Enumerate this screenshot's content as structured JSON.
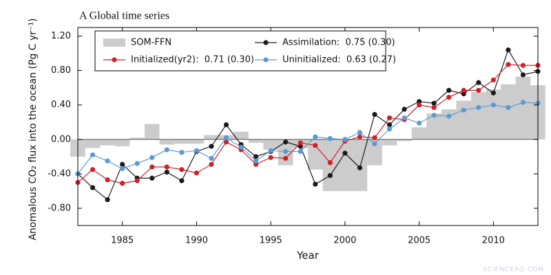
{
  "chart_data": {
    "type": "line",
    "title": "A Global time series",
    "x_label": "Year",
    "y_label": "Anomalous CO₂ flux into the ocean (Pg C yr⁻¹)",
    "watermark": "SCIENCEAQ.COM",
    "x": [
      1982,
      1983,
      1984,
      1985,
      1986,
      1987,
      1988,
      1989,
      1990,
      1991,
      1992,
      1993,
      1994,
      1995,
      1996,
      1997,
      1998,
      1999,
      2000,
      2001,
      2002,
      2003,
      2004,
      2005,
      2006,
      2007,
      2008,
      2009,
      2010,
      2011,
      2012,
      2013
    ],
    "xlim": [
      1982,
      2013
    ],
    "xticks": [
      1985,
      1990,
      1995,
      2000,
      2005,
      2010
    ],
    "ylim": [
      -1.0,
      1.3
    ],
    "yticks": [
      {
        "value": -0.8,
        "label": "-0.80"
      },
      {
        "value": -0.4,
        "label": "-0.40"
      },
      {
        "value": 0,
        "label": "0.00"
      },
      {
        "value": 0.4,
        "label": "0.40"
      },
      {
        "value": 0.8,
        "label": "0.80"
      },
      {
        "value": 1.2,
        "label": "1.20"
      }
    ],
    "legend": "top-left",
    "series": [
      {
        "name": "SOM-FFN",
        "type": "bar",
        "color": "#cccccc",
        "values": [
          -0.2,
          -0.1,
          -0.07,
          -0.08,
          0.02,
          0.18,
          -0.06,
          -0.05,
          -0.05,
          0.05,
          0.05,
          0.09,
          -0.04,
          -0.12,
          -0.3,
          -0.1,
          -0.35,
          -0.6,
          -0.6,
          -0.6,
          -0.3,
          -0.07,
          -0.02,
          0.14,
          0.3,
          0.35,
          0.45,
          0.55,
          0.58,
          0.64,
          0.73,
          0.63
        ]
      },
      {
        "name": "Assimilation:  0.75 (0.30)",
        "color": "#1a1a1a",
        "values": [
          -0.4,
          -0.56,
          -0.7,
          -0.29,
          -0.45,
          -0.45,
          -0.38,
          -0.48,
          -0.14,
          -0.08,
          0.17,
          -0.06,
          -0.2,
          -0.14,
          -0.03,
          -0.08,
          -0.52,
          -0.42,
          -0.16,
          -0.33,
          0.29,
          0.17,
          0.35,
          0.44,
          0.42,
          0.57,
          0.53,
          0.66,
          0.54,
          1.04,
          0.75,
          0.79
        ]
      },
      {
        "name": "Initialized(yr2):  0.71 (0.30)",
        "color": "#d0202a",
        "values": [
          -0.5,
          -0.35,
          -0.47,
          -0.51,
          -0.48,
          -0.32,
          -0.32,
          -0.35,
          -0.39,
          -0.29,
          -0.03,
          -0.12,
          -0.29,
          -0.21,
          -0.22,
          -0.04,
          -0.07,
          -0.27,
          -0.02,
          0.03,
          0.02,
          0.25,
          0.23,
          0.4,
          0.37,
          0.49,
          0.57,
          0.57,
          0.69,
          0.87,
          0.86,
          0.86
        ]
      },
      {
        "name": "Uninitialized:  0.63 (0.27)",
        "color": "#5b9bd5",
        "values": [
          -0.4,
          -0.18,
          -0.25,
          -0.34,
          -0.28,
          -0.21,
          -0.12,
          -0.15,
          -0.13,
          -0.22,
          0.02,
          -0.09,
          -0.25,
          -0.13,
          -0.14,
          -0.14,
          0.03,
          0.01,
          0.0,
          0.08,
          -0.05,
          0.12,
          0.25,
          0.19,
          0.28,
          0.27,
          0.34,
          0.37,
          0.4,
          0.37,
          0.43,
          0.42
        ]
      }
    ]
  }
}
